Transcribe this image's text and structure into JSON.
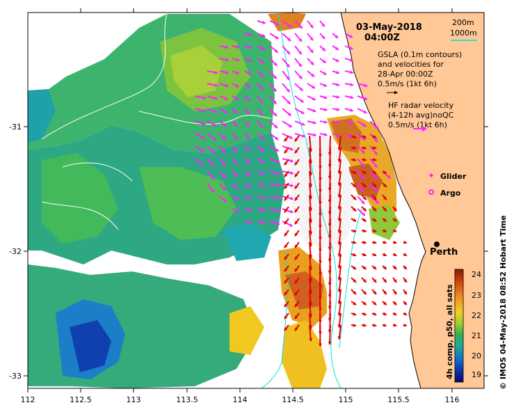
{
  "map": {
    "date": "03-May-2018",
    "time": "04:00Z",
    "contours": {
      "shallow": "200m",
      "deep": "1000m"
    },
    "gsla_lines": [
      "GSLA (0.1m contours)",
      "and velocities for",
      "28-Apr 00:00Z",
      "0.5m/s (1kt 6h)"
    ],
    "hf_lines": [
      "HF radar velocity",
      "(4-12h avg)noQC",
      "0.5m/s (1kt 6h)"
    ],
    "glider_label": "Glider",
    "argo_label": "Argo",
    "city_label": "Perth",
    "colorbar_label": "4h comp, p50, all sats",
    "colorbar_ticks": [
      "24",
      "23",
      "22",
      "21",
      "20",
      "19"
    ],
    "credit": "© IMOS 04-May-2018 08:52 Hobart Time",
    "x_ticks": [
      "112",
      "112.5",
      "113",
      "113.5",
      "114",
      "114.5",
      "115",
      "115.5",
      "116"
    ],
    "y_ticks": [
      "-31",
      "-32",
      "-33"
    ],
    "colors": {
      "land": "#ffc896",
      "hf_arrow": "#ff20ff",
      "gsla_arrow": "#e60000",
      "contour_1000": "#00e0e0",
      "contour_200": "#ffffff"
    }
  }
}
